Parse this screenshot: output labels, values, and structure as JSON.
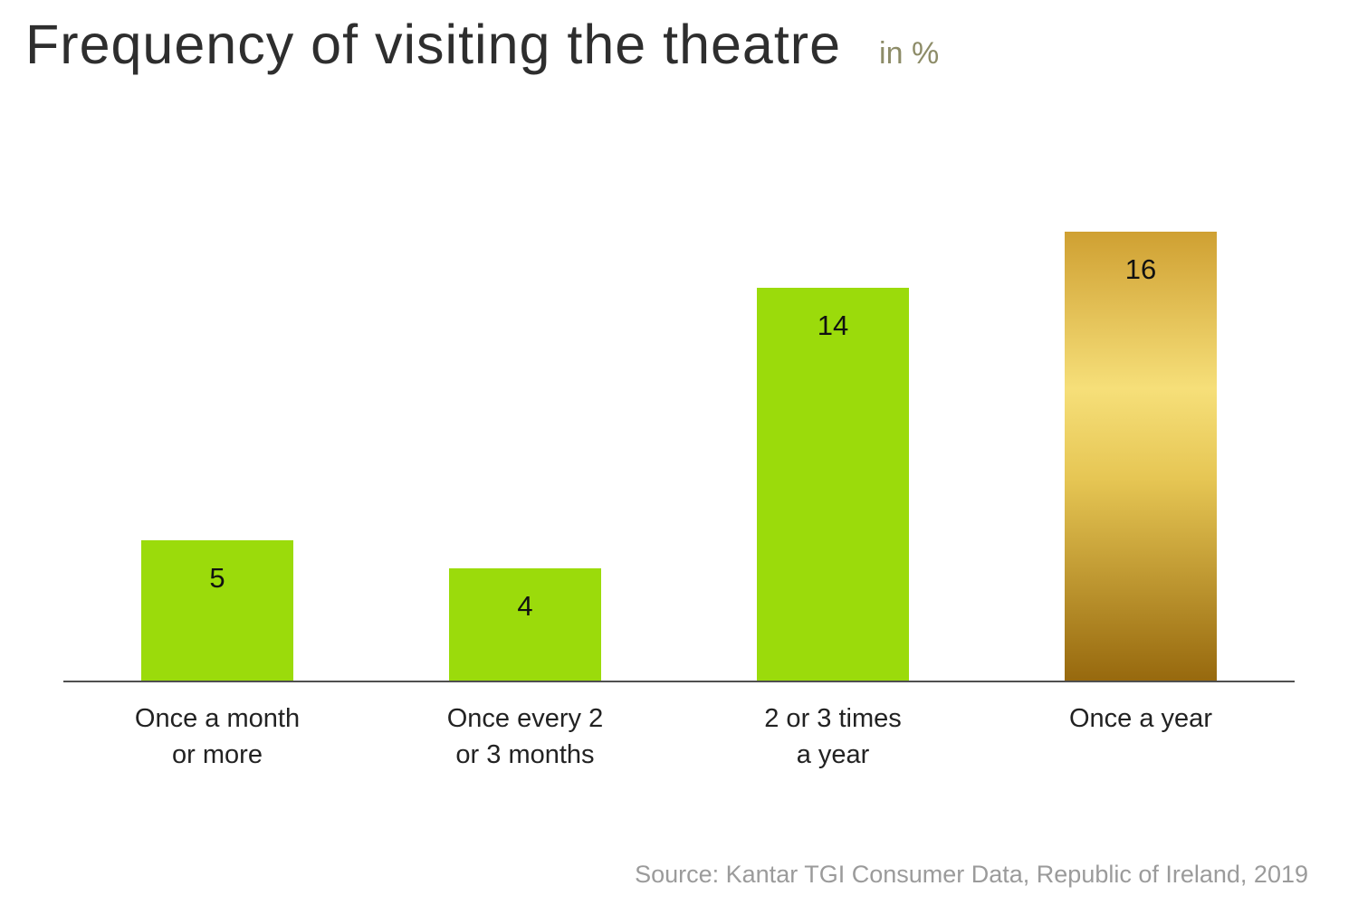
{
  "chart_data": {
    "type": "bar",
    "title": "Frequency of visiting the theatre",
    "unit_label": "in %",
    "categories": [
      "Once a month\nor more",
      "Once every 2\nor 3 months",
      "2 or 3 times\na year",
      "Once a year"
    ],
    "values": [
      5,
      4,
      14,
      16
    ],
    "bar_colors": [
      "green",
      "green",
      "green",
      "gold"
    ],
    "ylim": [
      0,
      16
    ],
    "grid": false,
    "legend": false,
    "source": "Source: Kantar TGI Consumer Data, Republic of Ireland, 2019"
  },
  "colors": {
    "green": "#9bdb0b",
    "gold_top": "#cfa032",
    "gold_light": "#f6df79",
    "gold_bottom": "#97690e",
    "title": "#2e2e2e",
    "unit": "#8d8c68",
    "source": "#9b9b9b",
    "axis": "#4f4f4f",
    "value_label": "#111111"
  }
}
